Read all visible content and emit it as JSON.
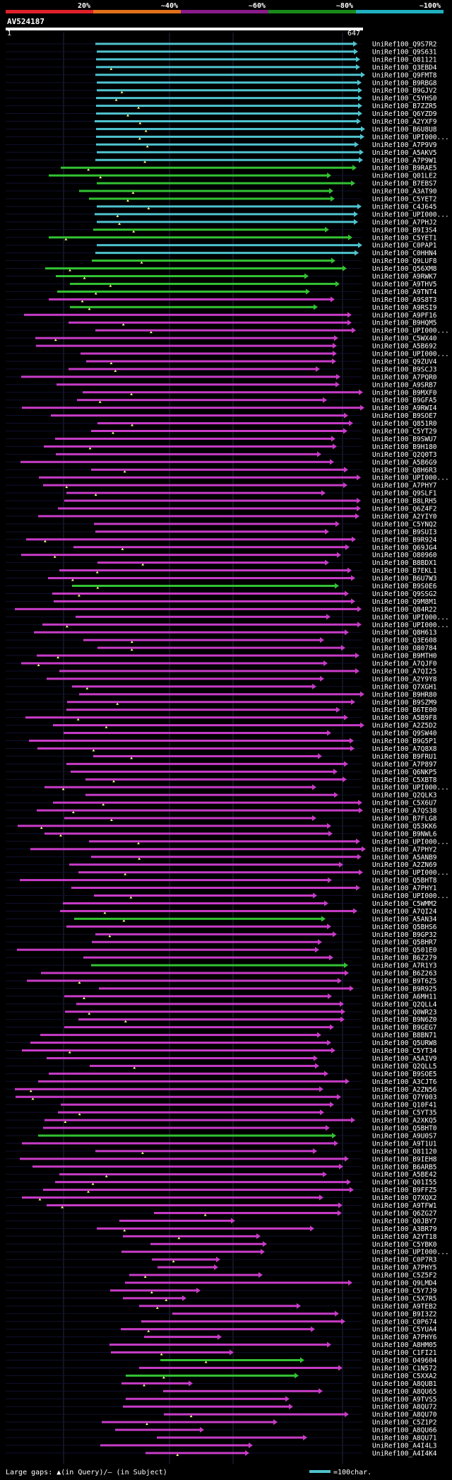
{
  "query_id": "AV524187",
  "ruler_start": "1",
  "ruler_end": "647",
  "scale_labels": [
    "20%",
    "~40%",
    "~60%",
    "~80%",
    "~100%"
  ],
  "scale_colors": [
    "#e0202a",
    "#e0701a",
    "#8a1c8a",
    "#1a8a1a",
    "#20b0c0"
  ],
  "legend": {
    "text": "Large gaps: ▲(in Query)/– (in Subject)",
    "key": "=100char."
  },
  "colors": {
    "cyan": "#4fc3cf",
    "green": "#33c233",
    "magenta": "#c83cc8",
    "ruler": "#ffffff"
  },
  "hits": [
    {
      "label": "UniRef100_Q9S7R2",
      "c": "c"
    },
    {
      "label": "UniRef100_Q9S631",
      "c": "c"
    },
    {
      "label": "UniRef100_O81121",
      "c": "c"
    },
    {
      "label": "UniRef100_Q3EBD4",
      "c": "c"
    },
    {
      "label": "UniRef100_Q9FMT8",
      "c": "c"
    },
    {
      "label": "UniRef100_B9RBG8",
      "c": "c"
    },
    {
      "label": "UniRef100_B9GJV2",
      "c": "c"
    },
    {
      "label": "UniRef100_C5YHS0",
      "c": "c"
    },
    {
      "label": "UniRef100_B7ZZR5",
      "c": "c"
    },
    {
      "label": "UniRef100_Q6YZD9",
      "c": "c"
    },
    {
      "label": "UniRef100_A2YXF9",
      "c": "c"
    },
    {
      "label": "UniRef100_B6U8U8",
      "c": "c"
    },
    {
      "label": "UniRef100_UPI000...",
      "c": "c"
    },
    {
      "label": "UniRef100_A7P9V9",
      "c": "c"
    },
    {
      "label": "UniRef100_A5AKV5",
      "c": "c"
    },
    {
      "label": "UniRef100_A7P9W1",
      "c": "c"
    },
    {
      "label": "UniRef100_B9RAE5",
      "c": "g"
    },
    {
      "label": "UniRef100_Q01LE2",
      "c": "g"
    },
    {
      "label": "UniRef100_B7EBS7",
      "c": "g"
    },
    {
      "label": "UniRef100_A3AT90",
      "c": "g"
    },
    {
      "label": "UniRef100_C5YET2",
      "c": "g"
    },
    {
      "label": "UniRef100_C4J645",
      "c": "c"
    },
    {
      "label": "UniRef100_UPI000...",
      "c": "c"
    },
    {
      "label": "UniRef100_A7PHJ2",
      "c": "c"
    },
    {
      "label": "UniRef100_B9I3S4",
      "c": "g"
    },
    {
      "label": "UniRef100_C5YET1",
      "c": "g"
    },
    {
      "label": "UniRef100_C0PAP1",
      "c": "c"
    },
    {
      "label": "UniRef100_C0HHN4",
      "c": "c"
    },
    {
      "label": "UniRef100_Q9LUF8",
      "c": "g"
    },
    {
      "label": "UniRef100_Q56XM8",
      "c": "g"
    },
    {
      "label": "UniRef100_A9RWK7",
      "c": "g"
    },
    {
      "label": "UniRef100_A9THV5",
      "c": "g"
    },
    {
      "label": "UniRef100_A9TNT4",
      "c": "g"
    },
    {
      "label": "UniRef100_A9S8T3",
      "c": "m"
    },
    {
      "label": "UniRef100_A9RSI9",
      "c": "g"
    },
    {
      "label": "UniRef100_A9PF16",
      "c": "m"
    },
    {
      "label": "UniRef100_B9HQM5",
      "c": "m"
    },
    {
      "label": "UniRef100_UPI000...",
      "c": "m"
    },
    {
      "label": "UniRef100_C5WX40",
      "c": "m"
    },
    {
      "label": "UniRef100_A5B692",
      "c": "m"
    },
    {
      "label": "UniRef100_UPI000...",
      "c": "m"
    },
    {
      "label": "UniRef100_Q9ZUV4",
      "c": "m"
    },
    {
      "label": "UniRef100_B9SCJ3",
      "c": "m"
    },
    {
      "label": "UniRef100_A7PQR0",
      "c": "m"
    },
    {
      "label": "UniRef100_A9SRB7",
      "c": "m"
    },
    {
      "label": "UniRef100_B9MXF0",
      "c": "m"
    },
    {
      "label": "UniRef100_B9GFA5",
      "c": "m"
    },
    {
      "label": "UniRef100_A9RWI4",
      "c": "m"
    },
    {
      "label": "UniRef100_B9SOE7",
      "c": "m"
    },
    {
      "label": "UniRef100_Q851R0",
      "c": "m"
    },
    {
      "label": "UniRef100_C5YT29",
      "c": "m"
    },
    {
      "label": "UniRef100_B9SWU7",
      "c": "m"
    },
    {
      "label": "UniRef100_B9H180",
      "c": "m"
    },
    {
      "label": "UniRef100_Q2Q0T3",
      "c": "m"
    },
    {
      "label": "UniRef100_A5B6G9",
      "c": "m"
    },
    {
      "label": "UniRef100_Q8H6R3",
      "c": "m"
    },
    {
      "label": "UniRef100_UPI000...",
      "c": "m"
    },
    {
      "label": "UniRef100_A7PHY7",
      "c": "m"
    },
    {
      "label": "UniRef100_Q9SLF1",
      "c": "m"
    },
    {
      "label": "UniRef100_B8LRH5",
      "c": "m"
    },
    {
      "label": "UniRef100_Q6Z4F2",
      "c": "m"
    },
    {
      "label": "UniRef100_A2YIY0",
      "c": "m"
    },
    {
      "label": "UniRef100_C5YNQ2",
      "c": "m"
    },
    {
      "label": "UniRef100_B9SUI3",
      "c": "m"
    },
    {
      "label": "UniRef100_B9R924",
      "c": "m"
    },
    {
      "label": "UniRef100_Q69JG4",
      "c": "m"
    },
    {
      "label": "UniRef100_O80960",
      "c": "m"
    },
    {
      "label": "UniRef100_B8BDX1",
      "c": "m"
    },
    {
      "label": "UniRef100_B7EKL1",
      "c": "m"
    },
    {
      "label": "UniRef100_B6U7W3",
      "c": "m"
    },
    {
      "label": "UniRef100_B9S0E6",
      "c": "g"
    },
    {
      "label": "UniRef100_Q9SSG2",
      "c": "m"
    },
    {
      "label": "UniRef100_Q9M8M1",
      "c": "m"
    },
    {
      "label": "UniRef100_Q84R22",
      "c": "m"
    },
    {
      "label": "UniRef100_UPI000...",
      "c": "m"
    },
    {
      "label": "UniRef100_UPI000...",
      "c": "m"
    },
    {
      "label": "UniRef100_Q8H613",
      "c": "m"
    },
    {
      "label": "UniRef100_Q3E608",
      "c": "m"
    },
    {
      "label": "UniRef100_O80784",
      "c": "m"
    },
    {
      "label": "UniRef100_B9MTH0",
      "c": "m"
    },
    {
      "label": "UniRef100_A7QJF0",
      "c": "m"
    },
    {
      "label": "UniRef100_A7QI25",
      "c": "m"
    },
    {
      "label": "UniRef100_A2Y9Y8",
      "c": "m"
    },
    {
      "label": "UniRef100_Q7XGH1",
      "c": "m"
    },
    {
      "label": "UniRef100_B9HR80",
      "c": "m"
    },
    {
      "label": "UniRef100_B9SZM9",
      "c": "m"
    },
    {
      "label": "UniRef100_B6TE00",
      "c": "m"
    },
    {
      "label": "UniRef100_A5B9F8",
      "c": "m"
    },
    {
      "label": "UniRef100_A2Z5D2",
      "c": "m"
    },
    {
      "label": "UniRef100_Q9SW40",
      "c": "m"
    },
    {
      "label": "UniRef100_B9G5P1",
      "c": "m"
    },
    {
      "label": "UniRef100_A7Q8X8",
      "c": "m"
    },
    {
      "label": "UniRef100_B9FRU1",
      "c": "m"
    },
    {
      "label": "UniRef100_A7P897",
      "c": "m"
    },
    {
      "label": "UniRef100_Q6NKP5",
      "c": "m"
    },
    {
      "label": "UniRef100_C5XBT8",
      "c": "m"
    },
    {
      "label": "UniRef100_UPI000...",
      "c": "m"
    },
    {
      "label": "UniRef100_Q2QLK3",
      "c": "m"
    },
    {
      "label": "UniRef100_C5X6U7",
      "c": "m"
    },
    {
      "label": "UniRef100_A7QS38",
      "c": "m"
    },
    {
      "label": "UniRef100_B7FLG8",
      "c": "m"
    },
    {
      "label": "UniRef100_Q53KK6",
      "c": "m"
    },
    {
      "label": "UniRef100_B9NWL6",
      "c": "m"
    },
    {
      "label": "UniRef100_UPI000...",
      "c": "m"
    },
    {
      "label": "UniRef100_A7PHY2",
      "c": "m"
    },
    {
      "label": "UniRef100_A5ANB9",
      "c": "m"
    },
    {
      "label": "UniRef100_A2ZN69",
      "c": "m"
    },
    {
      "label": "UniRef100_UPI000...",
      "c": "m"
    },
    {
      "label": "UniRef100_Q5BHT8",
      "c": "m"
    },
    {
      "label": "UniRef100_A7PHY1",
      "c": "m"
    },
    {
      "label": "UniRef100_UPI000...",
      "c": "m"
    },
    {
      "label": "UniRef100_C5WMM2",
      "c": "m"
    },
    {
      "label": "UniRef100_A7QI24",
      "c": "m"
    },
    {
      "label": "UniRef100_A5AN34",
      "c": "g"
    },
    {
      "label": "UniRef100_Q5BHS6",
      "c": "m"
    },
    {
      "label": "UniRef100_B9GP32",
      "c": "m"
    },
    {
      "label": "UniRef100_Q5BHR7",
      "c": "m"
    },
    {
      "label": "UniRef100_Q501E0",
      "c": "m"
    },
    {
      "label": "UniRef100_B6Z279",
      "c": "m"
    },
    {
      "label": "UniRef100_A7R1Y3",
      "c": "g"
    },
    {
      "label": "UniRef100_B6Z263",
      "c": "m"
    },
    {
      "label": "UniRef100_B9T6Z5",
      "c": "m"
    },
    {
      "label": "UniRef100_B9R925",
      "c": "m"
    },
    {
      "label": "UniRef100_A6MH11",
      "c": "m"
    },
    {
      "label": "UniRef100_Q2QLL4",
      "c": "m"
    },
    {
      "label": "UniRef100_Q0WR23",
      "c": "m"
    },
    {
      "label": "UniRef100_B9N6Z0",
      "c": "m"
    },
    {
      "label": "UniRef100_B9GEG7",
      "c": "m"
    },
    {
      "label": "UniRef100_B8BN71",
      "c": "m"
    },
    {
      "label": "UniRef100_Q5URW8",
      "c": "m"
    },
    {
      "label": "UniRef100_C5YT34",
      "c": "m"
    },
    {
      "label": "UniRef100_A5AIV9",
      "c": "m"
    },
    {
      "label": "UniRef100_Q2QLL5",
      "c": "m"
    },
    {
      "label": "UniRef100_B9SOE5",
      "c": "m"
    },
    {
      "label": "UniRef100_A3CJT6",
      "c": "m"
    },
    {
      "label": "UniRef100_A2ZN56",
      "c": "m"
    },
    {
      "label": "UniRef100_Q7Y003",
      "c": "m"
    },
    {
      "label": "UniRef100_Q10F41",
      "c": "m"
    },
    {
      "label": "UniRef100_C5YT35",
      "c": "m"
    },
    {
      "label": "UniRef100_A2XKQ5",
      "c": "m"
    },
    {
      "label": "UniRef100_Q5BHT0",
      "c": "m"
    },
    {
      "label": "UniRef100_A9U0S7",
      "c": "g"
    },
    {
      "label": "UniRef100_A9T1U1",
      "c": "m"
    },
    {
      "label": "UniRef100_O81120",
      "c": "m"
    },
    {
      "label": "UniRef100_B9IEH8",
      "c": "m"
    },
    {
      "label": "UniRef100_B6ARB5",
      "c": "m"
    },
    {
      "label": "UniRef100_A5BE42",
      "c": "m"
    },
    {
      "label": "UniRef100_Q01I55",
      "c": "m"
    },
    {
      "label": "UniRef100_B9FFZ5",
      "c": "m"
    },
    {
      "label": "UniRef100_Q7XQX2",
      "c": "m"
    },
    {
      "label": "UniRef100_A9TFW1",
      "c": "m"
    },
    {
      "label": "UniRef100_Q6ZG27",
      "c": "m"
    },
    {
      "label": "UniRef100_Q0JBY7",
      "c": "m"
    },
    {
      "label": "UniRef100_A3BR79",
      "c": "m"
    },
    {
      "label": "UniRef100_A2YT18",
      "c": "m"
    },
    {
      "label": "UniRef100_C5YBK0",
      "c": "m"
    },
    {
      "label": "UniRef100_UPI000...",
      "c": "m"
    },
    {
      "label": "UniRef100_C0P7R3",
      "c": "m"
    },
    {
      "label": "UniRef100_A7PHY5",
      "c": "m"
    },
    {
      "label": "UniRef100_C5Z5F2",
      "c": "m"
    },
    {
      "label": "UniRef100_Q9LMD4",
      "c": "m"
    },
    {
      "label": "UniRef100_C5Y7J9",
      "c": "m"
    },
    {
      "label": "UniRef100_C5X7R5",
      "c": "m"
    },
    {
      "label": "UniRef100_A9TEB2",
      "c": "m"
    },
    {
      "label": "UniRef100_B9I3Z2",
      "c": "m"
    },
    {
      "label": "UniRef100_C0P674",
      "c": "m"
    },
    {
      "label": "UniRef100_C5YUA4",
      "c": "m"
    },
    {
      "label": "UniRef100_A7PHY6",
      "c": "m"
    },
    {
      "label": "UniRef100_A8HM05",
      "c": "m"
    },
    {
      "label": "UniRef100_C1FI21",
      "c": "m"
    },
    {
      "label": "UniRef100_O49604",
      "c": "g"
    },
    {
      "label": "UniRef100_C1N572",
      "c": "m"
    },
    {
      "label": "UniRef100_C5XXA2",
      "c": "g"
    },
    {
      "label": "UniRef100_A8QUB1",
      "c": "m"
    },
    {
      "label": "UniRef100_A8QU65",
      "c": "m"
    },
    {
      "label": "UniRef100_A9TVS5",
      "c": "m"
    },
    {
      "label": "UniRef100_A8QU72",
      "c": "m"
    },
    {
      "label": "UniRef100_A8QU70",
      "c": "m"
    },
    {
      "label": "UniRef100_C5Z1P2",
      "c": "m"
    },
    {
      "label": "UniRef100_A8QU66",
      "c": "m"
    },
    {
      "label": "UniRef100_A8QU71",
      "c": "m"
    },
    {
      "label": "UniRef100_A4I4L3",
      "c": "m"
    },
    {
      "label": "UniRef100_A4I4K4",
      "c": "m"
    }
  ]
}
